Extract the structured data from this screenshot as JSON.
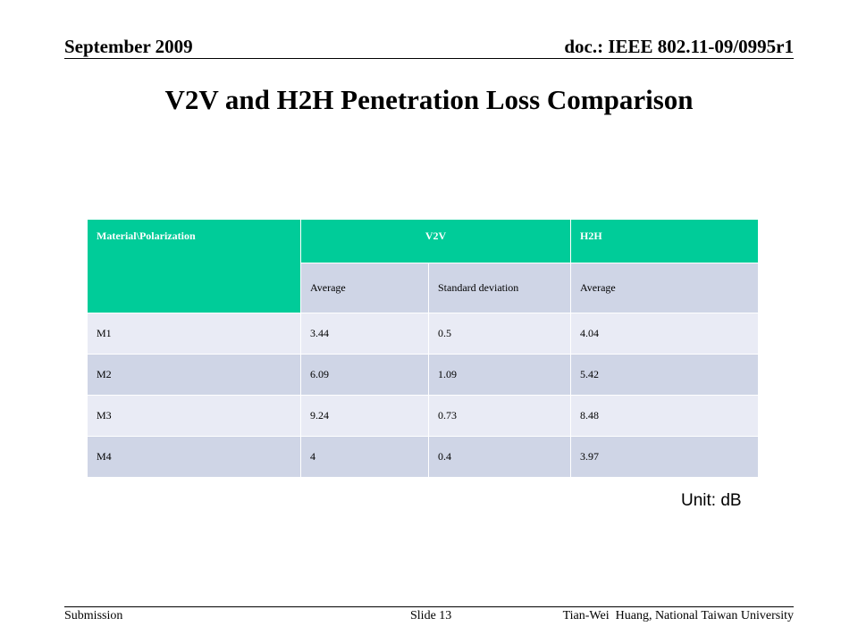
{
  "header": {
    "date": "September 2009",
    "doc": "doc.: IEEE 802.11-09/0995r1"
  },
  "title": "V2V and H2H Penetration Loss Comparison",
  "table": {
    "header": {
      "col1": "Material\\Polarization",
      "v2v": "V2V",
      "h2h": "H2H"
    },
    "subheader": {
      "avg1": "Average",
      "std": "Standard deviation",
      "avg2": "Average"
    },
    "rows": [
      {
        "material": "M1",
        "v2v_avg": "3.44",
        "v2v_std": "0.5",
        "h2h_avg": "4.04"
      },
      {
        "material": "M2",
        "v2v_avg": "6.09",
        "v2v_std": "1.09",
        "h2h_avg": "5.42"
      },
      {
        "material": "M3",
        "v2v_avg": "9.24",
        "v2v_std": "0.73",
        "h2h_avg": "8.48"
      },
      {
        "material": "M4",
        "v2v_avg": "4",
        "v2v_std": "0.4",
        "h2h_avg": "3.97"
      }
    ],
    "colors": {
      "header_bg": "#00cc99",
      "band_dark": "#cfd5e6",
      "band_light": "#e9ebf5"
    }
  },
  "unit": "Unit: dB",
  "footer": {
    "left": "Submission",
    "slide": "Slide 13",
    "author": "Tian-Wei  Huang, National Taiwan University"
  }
}
